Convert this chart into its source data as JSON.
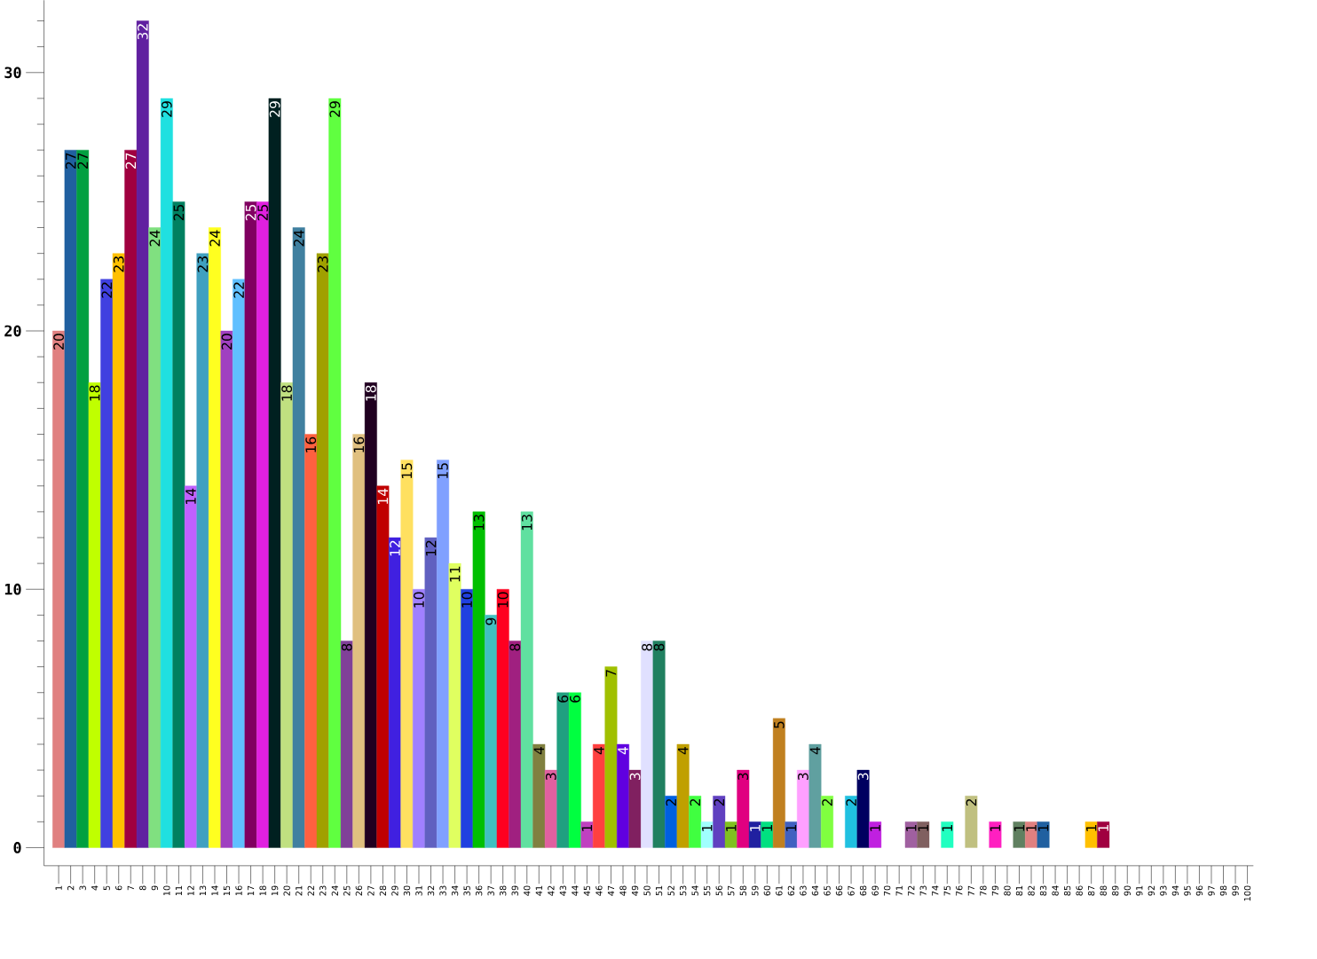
{
  "chart_data": {
    "type": "bar",
    "categories": [
      "1",
      "2",
      "3",
      "4",
      "5",
      "6",
      "7",
      "8",
      "9",
      "10",
      "11",
      "12",
      "13",
      "14",
      "15",
      "16",
      "17",
      "18",
      "19",
      "20",
      "21",
      "22",
      "23",
      "24",
      "25",
      "26",
      "27",
      "28",
      "29",
      "30",
      "31",
      "32",
      "33",
      "34",
      "35",
      "36",
      "37",
      "38",
      "39",
      "40",
      "41",
      "42",
      "43",
      "44",
      "45",
      "46",
      "47",
      "48",
      "49",
      "50",
      "51",
      "52",
      "53",
      "54",
      "55",
      "56",
      "57",
      "58",
      "59",
      "60",
      "61",
      "62",
      "63",
      "64",
      "65",
      "66",
      "67",
      "68",
      "69",
      "70",
      "71",
      "72",
      "73",
      "74",
      "75",
      "76",
      "77",
      "78",
      "79",
      "80",
      "81",
      "82",
      "83",
      "84",
      "85",
      "86",
      "87",
      "88",
      "89",
      "90",
      "91",
      "92",
      "93",
      "94",
      "95",
      "96",
      "97",
      "98",
      "99",
      "100"
    ],
    "values": [
      20,
      27,
      27,
      18,
      22,
      23,
      27,
      32,
      24,
      29,
      25,
      14,
      23,
      24,
      20,
      22,
      25,
      25,
      29,
      18,
      24,
      16,
      23,
      29,
      8,
      16,
      18,
      14,
      12,
      15,
      10,
      12,
      15,
      11,
      10,
      13,
      9,
      10,
      8,
      13,
      4,
      3,
      6,
      6,
      1,
      4,
      7,
      4,
      3,
      8,
      8,
      2,
      4,
      2,
      1,
      2,
      1,
      3,
      1,
      1,
      5,
      1,
      3,
      4,
      2,
      0,
      2,
      3,
      1,
      0,
      0,
      1,
      1,
      0,
      1,
      0,
      2,
      0,
      1,
      0,
      1,
      1,
      1,
      0,
      0,
      0,
      1,
      1,
      0,
      0,
      0,
      0,
      0,
      0,
      0,
      0,
      0,
      0,
      0,
      0
    ],
    "value_labels": [
      "20",
      "27",
      "27",
      "18",
      "22",
      "23",
      "27",
      "32",
      "24",
      "29",
      "25",
      "14",
      "23",
      "24",
      "20",
      "22",
      "25",
      "25",
      "29",
      "18",
      "24",
      "16",
      "23",
      "29",
      "8",
      "16",
      "18",
      "14",
      "12",
      "15",
      "10",
      "12",
      "15",
      "11",
      "10",
      "13",
      "9",
      "10",
      "8",
      "13",
      "4",
      "3",
      "6",
      "6",
      "1",
      "4",
      "7",
      "4",
      "3",
      "8",
      "8",
      "2",
      "4",
      "2",
      "1",
      "2",
      "1",
      "3",
      "1",
      "1",
      "5",
      "1",
      "3",
      "4",
      "2",
      null,
      "2",
      "3",
      "1",
      null,
      null,
      "1",
      "1",
      null,
      "1",
      null,
      "2",
      null,
      "1",
      null,
      "1",
      "1",
      "1",
      null,
      null,
      null,
      "1",
      "1",
      null,
      null,
      null,
      null,
      null,
      null,
      null,
      null,
      null,
      null,
      null,
      null
    ],
    "colors": [
      "#e08080",
      "#2060a0",
      "#00a040",
      "#c0ff00",
      "#4040e0",
      "#ffc000",
      "#a00040",
      "#6020a0",
      "#80e080",
      "#20e0e0",
      "#008060",
      "#c060ff",
      "#40a0c0",
      "#ffff20",
      "#a040c0",
      "#60c0ff",
      "#800060",
      "#e020e0",
      "#002020",
      "#c0e080",
      "#4080a0",
      "#ff6040",
      "#a0a000",
      "#60ff40",
      "#804098",
      "#e0c080",
      "#200020",
      "#c00000",
      "#4020e0",
      "#ffe060",
      "#a080ff",
      "#6060c0",
      "#80a0ff",
      "#e0ff60",
      "#2040e0",
      "#00c000",
      "#40c0c0",
      "#ff0020",
      "#a02080",
      "#60e0a0",
      "#808040",
      "#e060a0",
      "#20a080",
      "#00ff40",
      "#c040c0",
      "#ff4040",
      "#a0c000",
      "#6000e0",
      "#802060",
      "#e0e0ff",
      "#208060",
      "#0060e0",
      "#c0a000",
      "#40ff40",
      "#a0ffff",
      "#6040c0",
      "#80c020",
      "#e00080",
      "#2020a0",
      "#00e080",
      "#c08020",
      "#4060c0",
      "#ffa0ff",
      "#60a0a0",
      "#80ff40",
      "#ff4000",
      "#20c0e0",
      "#000060",
      "#c020e0",
      "#40e000",
      "#ff8040",
      "#a060a0",
      "#806060",
      "#e0a0ff",
      "#20ffc0",
      "#006040",
      "#c0c080",
      "#800040",
      "#ff20c0",
      "#a0e0ff",
      "#608060",
      "#e08080",
      "#2060a0",
      "#00a040",
      "#c0ff00",
      "#4040e0",
      "#ffc000",
      "#a00040",
      "#6020a0",
      "#80e080",
      "#20e0e0",
      "#008060",
      "#c060ff",
      "#40a0c0",
      "#ffff20",
      "#a040c0",
      "#60c0ff",
      "#800060",
      "#e020e0",
      "#002020"
    ],
    "ylim": [
      -0.7,
      32.8
    ],
    "yticks": [
      0,
      {
        "value": 1,
        "label": null
      },
      {
        "value": 2,
        "label": null
      },
      {
        "value": 3,
        "label": null
      },
      {
        "value": 4,
        "label": null
      },
      {
        "value": 5,
        "label": null
      },
      {
        "value": 6,
        "label": null
      },
      {
        "value": 7,
        "label": null
      },
      {
        "value": 8,
        "label": null
      },
      {
        "value": 9,
        "label": null
      },
      10,
      {
        "value": 11,
        "label": null
      },
      {
        "value": 12,
        "label": null
      },
      {
        "value": 13,
        "label": null
      },
      {
        "value": 14,
        "label": null
      },
      {
        "value": 15,
        "label": null
      },
      {
        "value": 16,
        "label": null
      },
      {
        "value": 17,
        "label": null
      },
      {
        "value": 18,
        "label": null
      },
      {
        "value": 19,
        "label": null
      },
      20,
      {
        "value": 21,
        "label": null
      },
      {
        "value": 22,
        "label": null
      },
      {
        "value": 23,
        "label": null
      },
      {
        "value": 24,
        "label": null
      },
      {
        "value": 25,
        "label": null
      },
      {
        "value": 26,
        "label": null
      },
      {
        "value": 27,
        "label": null
      },
      {
        "value": 28,
        "label": null
      },
      {
        "value": 29,
        "label": null
      },
      30,
      {
        "value": 31,
        "label": null
      },
      {
        "value": 32,
        "label": null
      }
    ],
    "grid": false
  }
}
